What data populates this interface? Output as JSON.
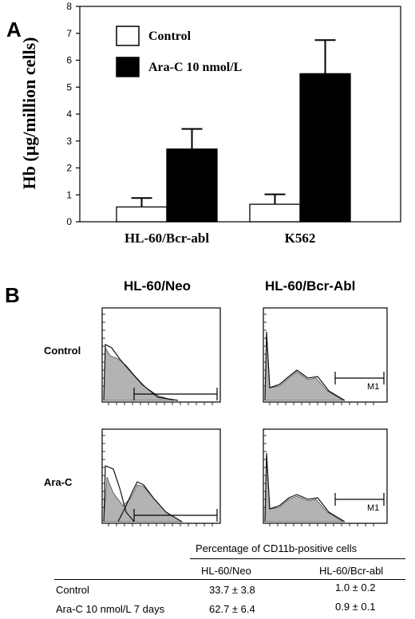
{
  "panel_a": {
    "letter": "A",
    "ylabel": "Hb (μg/million cells)",
    "legend": [
      {
        "label": "Control",
        "color": "#ffffff"
      },
      {
        "label": "Ara-C 10 nmol/L",
        "color": "#000000"
      }
    ]
  },
  "panel_b": {
    "letter": "B",
    "columns": [
      "HL-60/Neo",
      "HL-60/Bcr-Abl"
    ],
    "rows": [
      "Control",
      "Ara-C"
    ],
    "gate_label": "M1"
  },
  "table": {
    "caption": "Percentage of CD11b-positive cells",
    "headers": [
      "HL-60/Neo",
      "HL-60/Bcr-abl"
    ],
    "rows": [
      {
        "label": "Control",
        "neo": "33.7 ± 3.8",
        "bcr": "1.0 ± 0.2"
      },
      {
        "label": "Ara-C 10 nmol/L 7 days",
        "neo": "62.7 ± 6.4",
        "bcr": "0.9 ± 0.1"
      }
    ]
  },
  "chart_data": {
    "type": "bar",
    "categories": [
      "HL-60/Bcr-abl",
      "K562"
    ],
    "series": [
      {
        "name": "Control",
        "values": [
          0.55,
          0.65
        ],
        "errors": [
          0.33,
          0.37
        ],
        "color": "#ffffff"
      },
      {
        "name": "Ara-C 10 nmol/L",
        "values": [
          2.7,
          5.5
        ],
        "errors": [
          0.75,
          1.25
        ],
        "color": "#000000"
      }
    ],
    "ylabel": "Hb (μg/million cells)",
    "ylim": [
      0,
      8
    ],
    "yticks": [
      0,
      1,
      2,
      3,
      4,
      5,
      6,
      7,
      8
    ],
    "grid": false,
    "legend_position": "top-left"
  }
}
